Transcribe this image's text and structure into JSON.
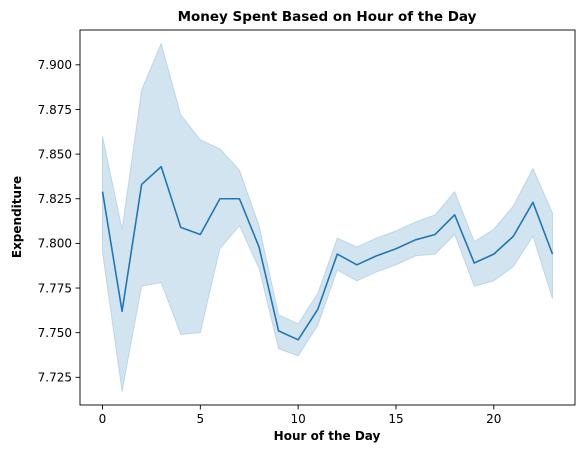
{
  "chart_data": {
    "type": "line",
    "title": "Money Spent Based on Hour of the Day",
    "xlabel": "Hour of the Day",
    "ylabel": "Expenditure",
    "xlim": [
      -1.15,
      24.15
    ],
    "ylim": [
      7.7095,
      7.9195
    ],
    "xticks": [
      0,
      5,
      10,
      15,
      20
    ],
    "xtick_labels": [
      "0",
      "5",
      "10",
      "15",
      "20"
    ],
    "yticks": [
      7.725,
      7.75,
      7.775,
      7.8,
      7.825,
      7.85,
      7.875,
      7.9
    ],
    "ytick_labels": [
      "7.725",
      "7.750",
      "7.775",
      "7.800",
      "7.825",
      "7.850",
      "7.875",
      "7.900"
    ],
    "grid": false,
    "legend": "none",
    "x": [
      0,
      1,
      2,
      3,
      4,
      5,
      6,
      7,
      8,
      9,
      10,
      11,
      12,
      13,
      14,
      15,
      16,
      17,
      18,
      19,
      20,
      21,
      22,
      23
    ],
    "series": [
      {
        "values": [
          7.829,
          7.762,
          7.833,
          7.843,
          7.809,
          7.805,
          7.825,
          7.825,
          7.798,
          7.751,
          7.746,
          7.763,
          7.794,
          7.788,
          7.793,
          7.797,
          7.802,
          7.805,
          7.816,
          7.789,
          7.794,
          7.804,
          7.823,
          7.794
        ],
        "ci_upper": [
          7.86,
          7.808,
          7.886,
          7.912,
          7.872,
          7.858,
          7.853,
          7.841,
          7.81,
          7.76,
          7.755,
          7.772,
          7.803,
          7.798,
          7.803,
          7.807,
          7.812,
          7.816,
          7.829,
          7.801,
          7.808,
          7.821,
          7.842,
          7.817
        ],
        "ci_lower": [
          7.795,
          7.717,
          7.776,
          7.778,
          7.749,
          7.75,
          7.797,
          7.81,
          7.786,
          7.741,
          7.737,
          7.754,
          7.785,
          7.779,
          7.784,
          7.788,
          7.793,
          7.794,
          7.805,
          7.776,
          7.779,
          7.787,
          7.804,
          7.769
        ],
        "color": "#1f77b4",
        "band_color": "#1f77b4"
      }
    ]
  }
}
